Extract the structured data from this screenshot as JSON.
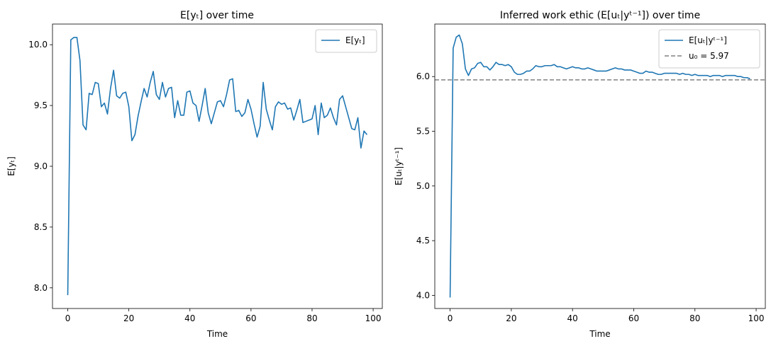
{
  "chart_data": [
    {
      "type": "line",
      "title": "E[yₜ] over time",
      "xlabel": "Time",
      "ylabel": "E[yₜ]",
      "xlim": [
        -5,
        103
      ],
      "ylim": [
        7.83,
        10.17
      ],
      "xticks": [
        0,
        20,
        40,
        60,
        80,
        100
      ],
      "yticks": [
        8.0,
        8.5,
        9.0,
        9.5,
        10.0
      ],
      "xtick_labels": [
        "0",
        "20",
        "40",
        "60",
        "80",
        "100"
      ],
      "ytick_labels": [
        "8.0",
        "8.5",
        "9.0",
        "9.5",
        "10.0"
      ],
      "grid": false,
      "legend_position": "upper-right",
      "series": [
        {
          "name": "E[yₜ]",
          "color": "#1f77b4",
          "x": [
            0,
            1,
            2,
            3,
            4,
            5,
            6,
            7,
            8,
            9,
            10,
            11,
            12,
            13,
            14,
            15,
            16,
            17,
            18,
            19,
            20,
            21,
            22,
            23,
            24,
            25,
            26,
            27,
            28,
            29,
            30,
            31,
            32,
            33,
            34,
            35,
            36,
            37,
            38,
            39,
            40,
            41,
            42,
            43,
            44,
            45,
            46,
            47,
            48,
            49,
            50,
            51,
            52,
            53,
            54,
            55,
            56,
            57,
            58,
            59,
            60,
            61,
            62,
            63,
            64,
            65,
            66,
            67,
            68,
            69,
            70,
            71,
            72,
            73,
            74,
            75,
            76,
            77,
            78,
            79,
            80,
            81,
            82,
            83,
            84,
            85,
            86,
            87,
            88,
            89,
            90,
            91,
            92,
            93,
            94,
            95,
            96,
            97,
            98
          ],
          "values": [
            7.94,
            10.04,
            10.06,
            10.06,
            9.87,
            9.34,
            9.3,
            9.6,
            9.59,
            9.69,
            9.68,
            9.49,
            9.52,
            9.43,
            9.64,
            9.79,
            9.58,
            9.56,
            9.6,
            9.61,
            9.49,
            9.21,
            9.26,
            9.41,
            9.53,
            9.64,
            9.57,
            9.69,
            9.78,
            9.59,
            9.55,
            9.69,
            9.57,
            9.64,
            9.65,
            9.4,
            9.54,
            9.42,
            9.42,
            9.61,
            9.62,
            9.52,
            9.5,
            9.37,
            9.5,
            9.64,
            9.44,
            9.35,
            9.44,
            9.53,
            9.54,
            9.49,
            9.59,
            9.71,
            9.72,
            9.45,
            9.46,
            9.41,
            9.44,
            9.55,
            9.47,
            9.35,
            9.24,
            9.33,
            9.69,
            9.47,
            9.38,
            9.3,
            9.49,
            9.53,
            9.51,
            9.52,
            9.47,
            9.48,
            9.38,
            9.46,
            9.55,
            9.36,
            9.37,
            9.38,
            9.39,
            9.5,
            9.26,
            9.52,
            9.4,
            9.42,
            9.48,
            9.4,
            9.34,
            9.55,
            9.58,
            9.49,
            9.4,
            9.31,
            9.3,
            9.4,
            9.15,
            9.29,
            9.26
          ]
        }
      ]
    },
    {
      "type": "line",
      "title": "Inferred work ethic (E[uₜ|yᵗ⁻¹]) over time",
      "xlabel": "Time",
      "ylabel": "E[uₜ|yᵗ⁻¹]",
      "xlim": [
        -5,
        103
      ],
      "ylim": [
        3.88,
        6.48
      ],
      "xticks": [
        0,
        20,
        40,
        60,
        80,
        100
      ],
      "yticks": [
        4.0,
        4.5,
        5.0,
        5.5,
        6.0
      ],
      "xtick_labels": [
        "0",
        "20",
        "40",
        "60",
        "80",
        "100"
      ],
      "ytick_labels": [
        "4.0",
        "4.5",
        "5.0",
        "5.5",
        "6.0"
      ],
      "grid": false,
      "legend_position": "upper-right",
      "reference_lines": [
        {
          "label": "u₀ = 5.97",
          "y": 5.97,
          "color": "#808080",
          "style": "dashed"
        }
      ],
      "series": [
        {
          "name": "E[uₜ|yᵗ⁻¹]",
          "color": "#1f77b4",
          "x": [
            0,
            1,
            2,
            3,
            4,
            5,
            6,
            7,
            8,
            9,
            10,
            11,
            12,
            13,
            14,
            15,
            16,
            17,
            18,
            19,
            20,
            21,
            22,
            23,
            24,
            25,
            26,
            27,
            28,
            29,
            30,
            31,
            32,
            33,
            34,
            35,
            36,
            37,
            38,
            39,
            40,
            41,
            42,
            43,
            44,
            45,
            46,
            47,
            48,
            49,
            50,
            51,
            52,
            53,
            54,
            55,
            56,
            57,
            58,
            59,
            60,
            61,
            62,
            63,
            64,
            65,
            66,
            67,
            68,
            69,
            70,
            71,
            72,
            73,
            74,
            75,
            76,
            77,
            78,
            79,
            80,
            81,
            82,
            83,
            84,
            85,
            86,
            87,
            88,
            89,
            90,
            91,
            92,
            93,
            94,
            95,
            96,
            97,
            98
          ],
          "values": [
            3.98,
            6.26,
            6.36,
            6.38,
            6.3,
            6.07,
            6.01,
            6.07,
            6.08,
            6.12,
            6.13,
            6.09,
            6.09,
            6.06,
            6.09,
            6.13,
            6.11,
            6.11,
            6.1,
            6.11,
            6.09,
            6.04,
            6.02,
            6.02,
            6.03,
            6.05,
            6.05,
            6.07,
            6.1,
            6.09,
            6.09,
            6.1,
            6.1,
            6.1,
            6.11,
            6.09,
            6.09,
            6.08,
            6.07,
            6.08,
            6.09,
            6.08,
            6.08,
            6.07,
            6.07,
            6.08,
            6.07,
            6.06,
            6.05,
            6.05,
            6.05,
            6.05,
            6.06,
            6.07,
            6.08,
            6.07,
            6.07,
            6.06,
            6.06,
            6.06,
            6.05,
            6.04,
            6.03,
            6.03,
            6.05,
            6.04,
            6.04,
            6.03,
            6.02,
            6.02,
            6.03,
            6.03,
            6.03,
            6.03,
            6.03,
            6.02,
            6.03,
            6.02,
            6.02,
            6.01,
            6.02,
            6.01,
            6.01,
            6.01,
            6.01,
            6.0,
            6.01,
            6.01,
            6.01,
            6.0,
            6.01,
            6.01,
            6.01,
            6.01,
            6.0,
            6.0,
            5.99,
            5.99,
            5.98
          ]
        }
      ]
    }
  ]
}
